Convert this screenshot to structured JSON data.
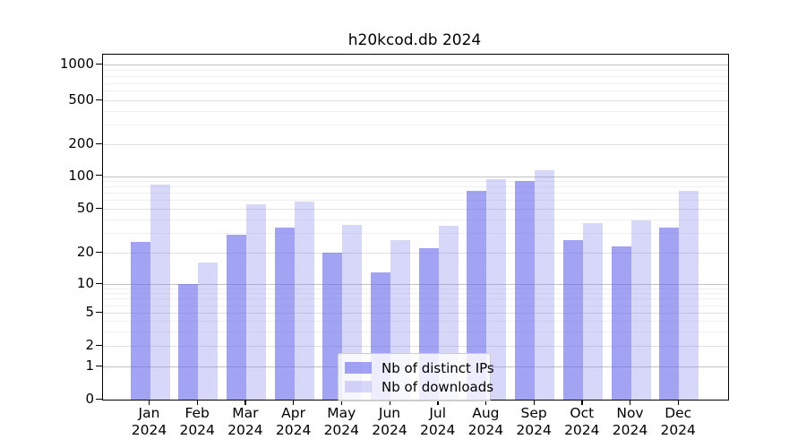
{
  "chart_data": {
    "type": "bar",
    "title": "h20kcod.db 2024",
    "categories": [
      "Jan 2024",
      "Feb 2024",
      "Mar 2024",
      "Apr 2024",
      "May 2024",
      "Jun 2024",
      "Jul 2024",
      "Aug 2024",
      "Sep 2024",
      "Oct 2024",
      "Nov 2024",
      "Dec 2024"
    ],
    "series": [
      {
        "name": "Nb of distinct IPs",
        "color": "rgba(102,102,235,0.60)",
        "values": [
          25,
          10,
          29,
          34,
          20,
          13,
          22,
          73,
          90,
          26,
          23,
          34
        ]
      },
      {
        "name": "Nb of downloads",
        "color": "rgba(130,130,238,0.32)",
        "values": [
          83,
          16,
          55,
          58,
          36,
          26,
          35,
          93,
          113,
          37,
          39,
          73
        ]
      }
    ],
    "xlabel": "",
    "ylabel": "",
    "yscale": "symlog",
    "yticks": [
      0,
      1,
      2,
      5,
      10,
      20,
      50,
      100,
      200,
      500,
      1000
    ],
    "ytick_labels": [
      "0",
      "1",
      "2",
      "5",
      "10",
      "20",
      "50",
      "100",
      "200",
      "500",
      "1000"
    ],
    "ylim": [
      0,
      1220
    ],
    "grid": true,
    "legend_position": "lower center"
  }
}
